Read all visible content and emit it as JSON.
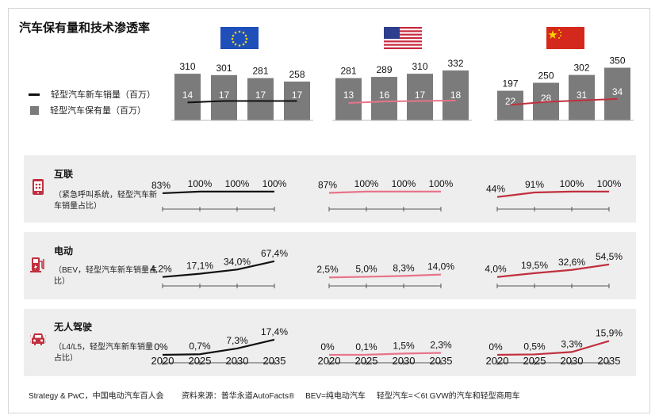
{
  "title": "汽车保有量和技术渗透率",
  "legend": {
    "line_label": "轻型汽车新车销量（百万）",
    "bar_label": "轻型汽车保有量（百万）"
  },
  "flags": [
    "eu-flag",
    "us-flag",
    "china-flag"
  ],
  "colors": {
    "bar": "#7b7b7b",
    "eu_line": "#111111",
    "us_line": "#e8748a",
    "cn_line": "#c0303e",
    "panel_bg": "#eeeeee"
  },
  "rows": [
    {
      "icon": "connected-phone-icon",
      "title": "互联",
      "subtitle": "（紧急呼叫系统，轻型汽车新车销量占比）"
    },
    {
      "icon": "ev-charger-icon",
      "title": "电动",
      "subtitle": "（BEV，轻型汽车新车销量占比）"
    },
    {
      "icon": "autonomous-car-icon",
      "title": "无人驾驶",
      "subtitle": "（L4/L5，轻型汽车新车销量占比）"
    }
  ],
  "years": [
    "2020",
    "2025",
    "2030",
    "2035"
  ],
  "footer": "Strategy & PwC，中国电动汽车百人会        资料来源：普华永道AutoFacts®     BEV=纯电动汽车     轻型汽车=＜6t GVW的汽车和轻型商用车",
  "chart_data": [
    {
      "type": "bar",
      "region": "EU",
      "categories": [
        "2020",
        "2025",
        "2030",
        "2035"
      ],
      "series": [
        {
          "name": "轻型汽车保有量（百万）",
          "values": [
            310,
            301,
            281,
            258
          ]
        },
        {
          "name": "轻型汽车新车销量（百万）",
          "values": [
            14,
            17,
            17,
            17
          ]
        }
      ],
      "value_labels": [
        "310",
        "301",
        "281",
        "258"
      ],
      "inner_labels": [
        "14",
        "17",
        "17",
        "17"
      ]
    },
    {
      "type": "bar",
      "region": "US",
      "categories": [
        "2020",
        "2025",
        "2030",
        "2035"
      ],
      "series": [
        {
          "name": "轻型汽车保有量（百万）",
          "values": [
            281,
            289,
            310,
            332
          ]
        },
        {
          "name": "轻型汽车新车销量（百万）",
          "values": [
            13,
            16,
            17,
            18
          ]
        }
      ],
      "value_labels": [
        "281",
        "289",
        "310",
        "332"
      ],
      "inner_labels": [
        "13",
        "16",
        "17",
        "18"
      ]
    },
    {
      "type": "bar",
      "region": "China",
      "categories": [
        "2020",
        "2025",
        "2030",
        "2035"
      ],
      "series": [
        {
          "name": "轻型汽车保有量（百万）",
          "values": [
            197,
            250,
            302,
            350
          ]
        },
        {
          "name": "轻型汽车新车销量（百万）",
          "values": [
            22,
            28,
            31,
            34
          ]
        }
      ],
      "value_labels": [
        "197",
        "250",
        "302",
        "350"
      ],
      "inner_labels": [
        "22",
        "28",
        "31",
        "34"
      ]
    },
    {
      "type": "line",
      "metric": "互联",
      "x": [
        "2020",
        "2025",
        "2030",
        "2035"
      ],
      "unit": "%",
      "series": [
        {
          "region": "EU",
          "values": [
            83,
            100,
            100,
            100
          ],
          "labels": [
            "83%",
            "100%",
            "100%",
            "100%"
          ]
        },
        {
          "region": "US",
          "values": [
            87,
            100,
            100,
            100
          ],
          "labels": [
            "87%",
            "100%",
            "100%",
            "100%"
          ]
        },
        {
          "region": "China",
          "values": [
            44,
            91,
            100,
            100
          ],
          "labels": [
            "44%",
            "91%",
            "100%",
            "100%"
          ]
        }
      ]
    },
    {
      "type": "line",
      "metric": "电动",
      "x": [
        "2020",
        "2025",
        "2030",
        "2035"
      ],
      "unit": "%",
      "series": [
        {
          "region": "EU",
          "values": [
            4.2,
            17.1,
            34.0,
            67.4
          ],
          "labels": [
            "4,2%",
            "17,1%",
            "34,0%",
            "67,4%"
          ]
        },
        {
          "region": "US",
          "values": [
            2.5,
            5.0,
            8.3,
            14.0
          ],
          "labels": [
            "2,5%",
            "5,0%",
            "8,3%",
            "14,0%"
          ]
        },
        {
          "region": "China",
          "values": [
            4.0,
            19.5,
            32.6,
            54.5
          ],
          "labels": [
            "4,0%",
            "19,5%",
            "32,6%",
            "54,5%"
          ]
        }
      ]
    },
    {
      "type": "line",
      "metric": "无人驾驶",
      "x": [
        "2020",
        "2025",
        "2030",
        "2035"
      ],
      "unit": "%",
      "series": [
        {
          "region": "EU",
          "values": [
            0,
            0.7,
            7.3,
            17.4
          ],
          "labels": [
            "0%",
            "0,7%",
            "7,3%",
            "17,4%"
          ]
        },
        {
          "region": "US",
          "values": [
            0,
            0.1,
            1.5,
            2.3
          ],
          "labels": [
            "0%",
            "0,1%",
            "1,5%",
            "2,3%"
          ]
        },
        {
          "region": "China",
          "values": [
            0,
            0.5,
            3.3,
            15.9
          ],
          "labels": [
            "0%",
            "0,5%",
            "3,3%",
            "15,9%"
          ]
        }
      ]
    }
  ]
}
